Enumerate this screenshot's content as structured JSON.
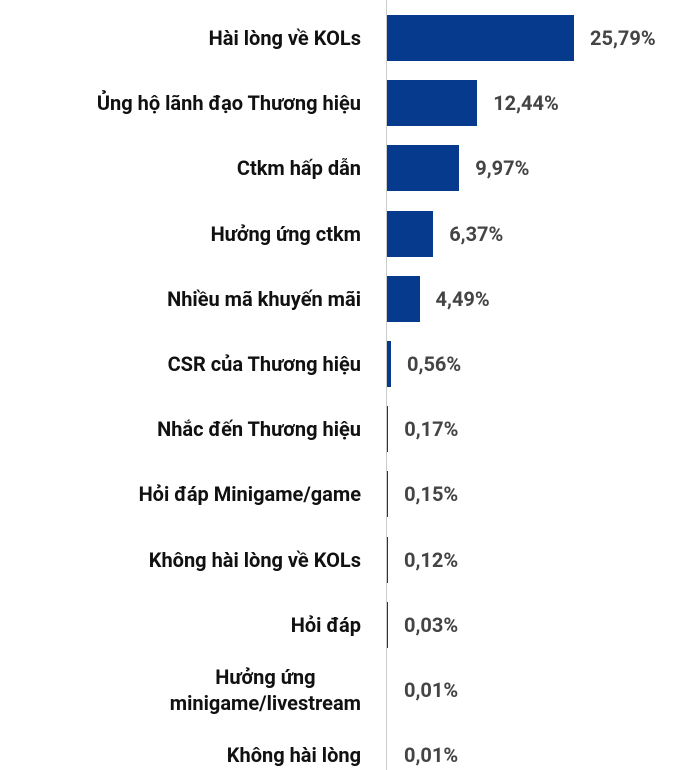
{
  "chart_data": {
    "type": "barh",
    "color": "#063a8c",
    "categories": [
      "Hài lòng về KOLs",
      "Ủng hộ lãnh đạo Thương hiệu",
      "Ctkm hấp dẫn",
      "Hưởng ứng ctkm",
      "Nhiều mã khuyến mãi",
      "CSR của Thương hiệu",
      "Nhắc đến Thương hiệu",
      "Hỏi đáp Minigame/game",
      "Không hài lòng về KOLs",
      "Hỏi đáp",
      "Hưởng ứng\nminigame/livestream",
      "Không hài lòng"
    ],
    "values": [
      25.79,
      12.44,
      9.97,
      6.37,
      4.49,
      0.56,
      0.17,
      0.15,
      0.12,
      0.03,
      0.01,
      0.01
    ],
    "value_labels": [
      "25,79%",
      "12,44%",
      "9,97%",
      "6,37%",
      "4,49%",
      "0,56%",
      "0,17%",
      "0,15%",
      "0,12%",
      "0,03%",
      "0,01%",
      "0,01%"
    ]
  }
}
